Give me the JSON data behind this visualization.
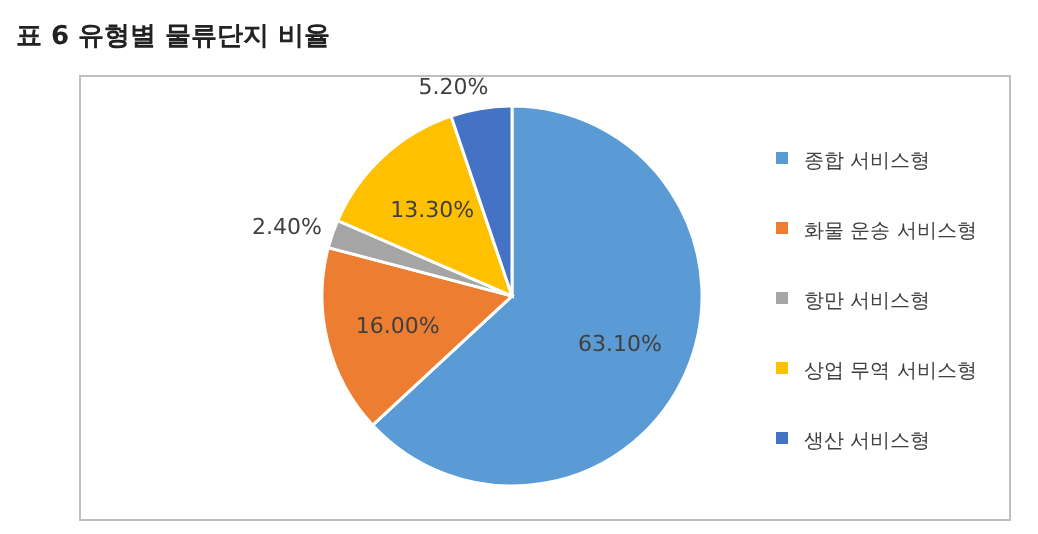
{
  "chart_data": {
    "type": "pie",
    "title": "표 6 유형별 물류단지 비율",
    "categories": [
      "종합 서비스형",
      "화물 운송 서비스형",
      "항만 서비스형",
      "상업 무역 서비스형",
      "생산 서비스형"
    ],
    "values": [
      63.1,
      16.0,
      2.4,
      13.3,
      5.2
    ],
    "colors": [
      "#5b9bd5",
      "#ed7d31",
      "#a5a5a5",
      "#ffc000",
      "#4472c4"
    ],
    "value_labels": [
      "63.10%",
      "16.00%",
      "2.40%",
      "13.30%",
      "5.20%"
    ],
    "legend": "right"
  }
}
